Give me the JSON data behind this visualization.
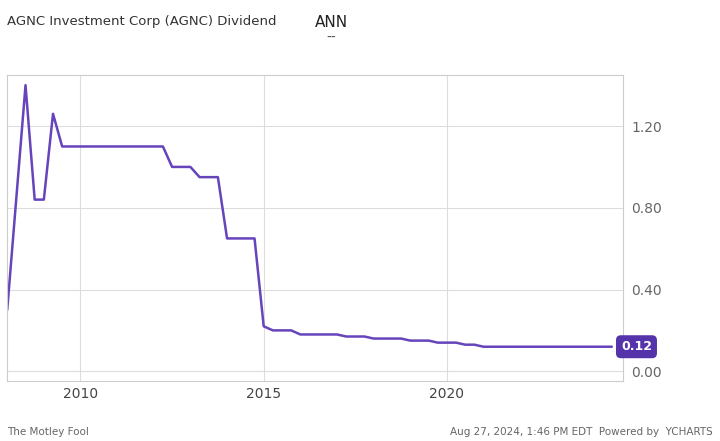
{
  "title_top": "ANN",
  "title_sub": "--",
  "chart_label": "AGNC Investment Corp (AGNC) Dividend",
  "line_color": "#6644bb",
  "background_color": "#ffffff",
  "plot_bg_color": "#ffffff",
  "grid_color": "#dddddd",
  "annotation_value": "0.12",
  "annotation_bg": "#5533aa",
  "annotation_text_color": "#ffffff",
  "footer_left": "The Motley Fool",
  "footer_right": "Aug 27, 2024, 1:46 PM EDT  Powered by  YCHARTS",
  "yticks": [
    0.0,
    0.4,
    0.8,
    1.2
  ],
  "xticks": [
    2010,
    2015,
    2020
  ],
  "xlim": [
    2008.0,
    2024.8
  ],
  "ylim": [
    -0.05,
    1.45
  ],
  "data_x": [
    2008.0,
    2008.5,
    2008.75,
    2009.0,
    2009.25,
    2009.5,
    2009.75,
    2010.0,
    2010.25,
    2010.5,
    2010.75,
    2011.0,
    2011.25,
    2011.5,
    2011.75,
    2012.0,
    2012.25,
    2012.5,
    2012.75,
    2013.0,
    2013.25,
    2013.5,
    2013.75,
    2014.0,
    2014.25,
    2014.5,
    2014.75,
    2015.0,
    2015.25,
    2015.5,
    2015.75,
    2016.0,
    2016.25,
    2016.5,
    2016.75,
    2017.0,
    2017.25,
    2017.5,
    2017.75,
    2018.0,
    2018.25,
    2018.5,
    2018.75,
    2019.0,
    2019.25,
    2019.5,
    2019.75,
    2020.0,
    2020.25,
    2020.5,
    2020.75,
    2021.0,
    2021.25,
    2021.5,
    2021.75,
    2022.0,
    2022.25,
    2022.5,
    2022.75,
    2023.0,
    2023.25,
    2023.5,
    2023.75,
    2024.0,
    2024.5
  ],
  "data_y": [
    0.3,
    1.4,
    0.84,
    0.84,
    1.26,
    1.1,
    1.1,
    1.1,
    1.1,
    1.1,
    1.1,
    1.1,
    1.1,
    1.1,
    1.1,
    1.1,
    1.1,
    1.0,
    1.0,
    1.0,
    0.95,
    0.95,
    0.95,
    0.65,
    0.65,
    0.65,
    0.65,
    0.22,
    0.2,
    0.2,
    0.2,
    0.18,
    0.18,
    0.18,
    0.18,
    0.18,
    0.17,
    0.17,
    0.17,
    0.16,
    0.16,
    0.16,
    0.16,
    0.15,
    0.15,
    0.15,
    0.14,
    0.14,
    0.14,
    0.13,
    0.13,
    0.12,
    0.12,
    0.12,
    0.12,
    0.12,
    0.12,
    0.12,
    0.12,
    0.12,
    0.12,
    0.12,
    0.12,
    0.12,
    0.12
  ]
}
